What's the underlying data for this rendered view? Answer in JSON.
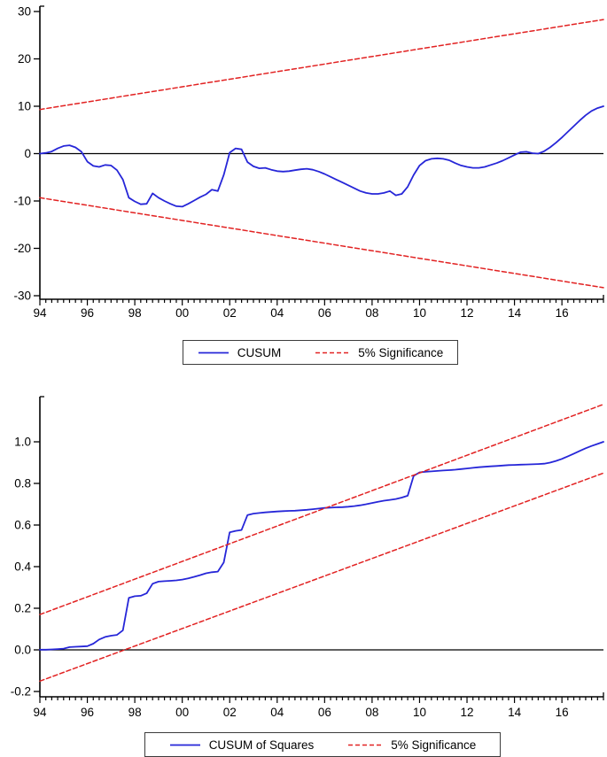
{
  "figure": {
    "background": "#ffffff",
    "axis_color": "#000000",
    "series_blue": "#2626d8",
    "series_red": "#e22222"
  },
  "chart_data": [
    {
      "type": "line",
      "title": "",
      "xlabel": "",
      "ylabel": "",
      "grid": false,
      "zero_line": true,
      "xlim": [
        94,
        117.75
      ],
      "ylim": [
        -30,
        30
      ],
      "x_minor_step": 0.25,
      "x_ticks": [
        {
          "label": "94",
          "year": 94
        },
        {
          "label": "96",
          "year": 96
        },
        {
          "label": "98",
          "year": 98
        },
        {
          "label": "00",
          "year": 100
        },
        {
          "label": "02",
          "year": 102
        },
        {
          "label": "04",
          "year": 104
        },
        {
          "label": "06",
          "year": 106
        },
        {
          "label": "08",
          "year": 108
        },
        {
          "label": "10",
          "year": 110
        },
        {
          "label": "12",
          "year": 112
        },
        {
          "label": "14",
          "year": 114
        },
        {
          "label": "16",
          "year": 116
        }
      ],
      "y_ticks": [
        {
          "label": "30",
          "value": 30
        },
        {
          "label": "20",
          "value": 20
        },
        {
          "label": "10",
          "value": 10
        },
        {
          "label": "0",
          "value": 0
        },
        {
          "label": "-10",
          "value": -10
        },
        {
          "label": "-20",
          "value": -20
        },
        {
          "label": "-30",
          "value": -30
        }
      ],
      "legend": [
        {
          "label": "CUSUM",
          "color": "#2626d8",
          "dash": "solid"
        },
        {
          "label": "5% Significance",
          "color": "#e22222",
          "dash": "dashed"
        }
      ],
      "series": [
        {
          "name": "cusum-line",
          "color": "#2626d8",
          "dash": "solid",
          "width": 1.8,
          "x_start": 94,
          "x_step": 0.25,
          "values": [
            0,
            0.15,
            0.45,
            1.1,
            1.6,
            1.75,
            1.3,
            0.4,
            -1.7,
            -2.6,
            -2.8,
            -2.4,
            -2.5,
            -3.5,
            -5.5,
            -9.3,
            -10.1,
            -10.7,
            -10.6,
            -8.4,
            -9.3,
            -10,
            -10.6,
            -11.1,
            -11.2,
            -10.6,
            -9.9,
            -9.2,
            -8.6,
            -7.6,
            -7.9,
            -4.5,
            0.2,
            1.1,
            0.9,
            -1.8,
            -2.7,
            -3.1,
            -3,
            -3.4,
            -3.7,
            -3.8,
            -3.7,
            -3.5,
            -3.3,
            -3.2,
            -3.4,
            -3.8,
            -4.3,
            -4.9,
            -5.5,
            -6.1,
            -6.7,
            -7.3,
            -7.9,
            -8.3,
            -8.5,
            -8.5,
            -8.3,
            -7.9,
            -8.8,
            -8.5,
            -7,
            -4.5,
            -2.5,
            -1.5,
            -1.1,
            -1,
            -1.1,
            -1.4,
            -2,
            -2.5,
            -2.8,
            -3,
            -3,
            -2.8,
            -2.4,
            -2,
            -1.5,
            -0.9,
            -0.3,
            0.3,
            0.4,
            0.1,
            0,
            0.5,
            1.3,
            2.3,
            3.4,
            4.6,
            5.8,
            7,
            8.1,
            9,
            9.6,
            10
          ]
        },
        {
          "name": "significance-upper",
          "color": "#e22222",
          "dash": "dashed",
          "width": 1.5,
          "x": [
            94,
            117.75
          ],
          "y": [
            9.3,
            28.3
          ]
        },
        {
          "name": "significance-lower",
          "color": "#e22222",
          "dash": "dashed",
          "width": 1.5,
          "x": [
            94,
            117.75
          ],
          "y": [
            -9.3,
            -28.3
          ]
        }
      ]
    },
    {
      "type": "line",
      "title": "",
      "xlabel": "",
      "ylabel": "",
      "grid": false,
      "zero_line": true,
      "xlim": [
        94,
        117.75
      ],
      "ylim": [
        -0.2,
        1.0
      ],
      "x_minor_step": 0.25,
      "x_ticks": [
        {
          "label": "94",
          "year": 94
        },
        {
          "label": "96",
          "year": 96
        },
        {
          "label": "98",
          "year": 98
        },
        {
          "label": "00",
          "year": 100
        },
        {
          "label": "02",
          "year": 102
        },
        {
          "label": "04",
          "year": 104
        },
        {
          "label": "06",
          "year": 106
        },
        {
          "label": "08",
          "year": 108
        },
        {
          "label": "10",
          "year": 110
        },
        {
          "label": "12",
          "year": 112
        },
        {
          "label": "14",
          "year": 114
        },
        {
          "label": "16",
          "year": 116
        }
      ],
      "y_ticks": [
        {
          "label": "1.0",
          "value": 1.0
        },
        {
          "label": "0.8",
          "value": 0.8
        },
        {
          "label": "0.6",
          "value": 0.6
        },
        {
          "label": "0.4",
          "value": 0.4
        },
        {
          "label": "0.2",
          "value": 0.2
        },
        {
          "label": "0.0",
          "value": 0.0
        },
        {
          "label": "-0.2",
          "value": -0.2
        }
      ],
      "legend": [
        {
          "label": "CUSUM of Squares",
          "color": "#2626d8",
          "dash": "solid"
        },
        {
          "label": "5% Significance",
          "color": "#e22222",
          "dash": "dashed"
        }
      ],
      "series": [
        {
          "name": "cusum-squares-line",
          "color": "#2626d8",
          "dash": "solid",
          "width": 1.8,
          "x_start": 94,
          "x_step": 0.25,
          "values": [
            0.001,
            0.001,
            0.002,
            0.004,
            0.006,
            0.013,
            0.015,
            0.016,
            0.018,
            0.03,
            0.05,
            0.062,
            0.068,
            0.072,
            0.094,
            0.25,
            0.258,
            0.26,
            0.272,
            0.318,
            0.328,
            0.33,
            0.332,
            0.334,
            0.338,
            0.344,
            0.351,
            0.359,
            0.368,
            0.373,
            0.376,
            0.42,
            0.565,
            0.572,
            0.576,
            0.648,
            0.655,
            0.658,
            0.661,
            0.663,
            0.665,
            0.667,
            0.668,
            0.669,
            0.671,
            0.673,
            0.676,
            0.679,
            0.682,
            0.684,
            0.685,
            0.686,
            0.688,
            0.691,
            0.695,
            0.7,
            0.706,
            0.712,
            0.717,
            0.721,
            0.725,
            0.732,
            0.741,
            0.836,
            0.853,
            0.856,
            0.858,
            0.86,
            0.862,
            0.864,
            0.866,
            0.869,
            0.872,
            0.875,
            0.878,
            0.88,
            0.882,
            0.884,
            0.886,
            0.888,
            0.889,
            0.89,
            0.891,
            0.892,
            0.893,
            0.895,
            0.9,
            0.908,
            0.918,
            0.93,
            0.943,
            0.956,
            0.969,
            0.98,
            0.99,
            1
          ]
        },
        {
          "name": "significance-upper",
          "color": "#e22222",
          "dash": "dashed",
          "width": 1.5,
          "x": [
            94,
            117.75
          ],
          "y": [
            0.17,
            1.18
          ]
        },
        {
          "name": "significance-lower",
          "color": "#e22222",
          "dash": "dashed",
          "width": 1.5,
          "x": [
            94,
            117.75
          ],
          "y": [
            -0.15,
            0.85
          ]
        }
      ]
    }
  ]
}
